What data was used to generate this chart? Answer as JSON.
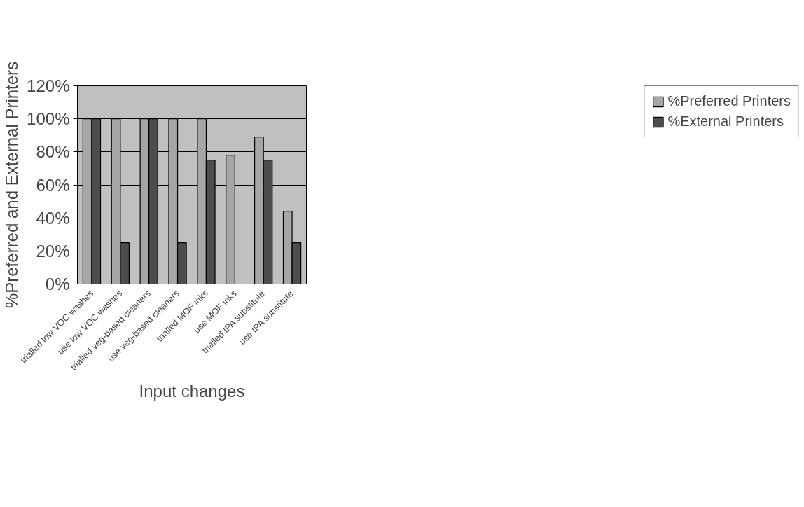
{
  "chart_data": {
    "type": "bar",
    "xlabel": "Input changes",
    "ylabel": "%Preferred and External Printers",
    "categories": [
      "trialled low VOC washes",
      "use low VOC washes",
      "trialled veg-based cleaners",
      "use veg-based cleaners",
      "trialled MOF inks",
      "use MOF inks",
      "trialled IPA substitute",
      "use IPA substitute"
    ],
    "series": [
      {
        "name": "%Preferred Printers",
        "color": "#a6a6a6",
        "values": [
          100,
          100,
          100,
          100,
          100,
          78,
          89,
          44
        ]
      },
      {
        "name": "%External Printers",
        "color": "#4d4d4d",
        "values": [
          100,
          25,
          100,
          25,
          75,
          null,
          75,
          25
        ]
      }
    ],
    "ylim": [
      0,
      120
    ],
    "yticks": [
      {
        "value": 0,
        "label": "0%"
      },
      {
        "value": 20,
        "label": "20%"
      },
      {
        "value": 40,
        "label": "40%"
      },
      {
        "value": 60,
        "label": "60%"
      },
      {
        "value": 80,
        "label": "80%"
      },
      {
        "value": 100,
        "label": "100%"
      },
      {
        "value": 120,
        "label": "120%"
      }
    ],
    "grid": "y",
    "legend": "top right"
  }
}
